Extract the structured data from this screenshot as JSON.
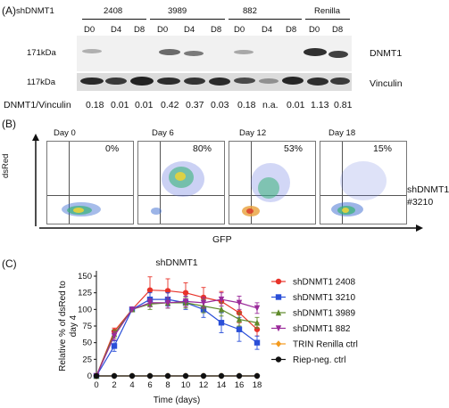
{
  "panel_a": {
    "letter": "(A)",
    "construct": "shDNMT1",
    "groups": [
      {
        "name": "2408",
        "lanes": [
          "D0",
          "D4",
          "D8"
        ]
      },
      {
        "name": "3989",
        "lanes": [
          "D0",
          "D4",
          "D8"
        ]
      },
      {
        "name": "882",
        "lanes": [
          "D0",
          "D4",
          "D8"
        ]
      },
      {
        "name": "Renilla",
        "lanes": [
          "D0",
          "D8"
        ]
      }
    ],
    "mw_top": "171kDa",
    "mw_bottom": "117kDa",
    "label_top": "DNMT1",
    "label_bottom": "Vinculin",
    "ratio_label": "DNMT1/Vinculin",
    "ratios": [
      "0.18",
      "0.01",
      "0.01",
      "0.42",
      "0.37",
      "0.03",
      "0.18",
      "n.a.",
      "0.01",
      "1.13",
      "0.81"
    ]
  },
  "panel_b": {
    "letter": "(B)",
    "days": [
      "Day 0",
      "Day 6",
      "Day 12",
      "Day 18"
    ],
    "percents": [
      "0%",
      "80%",
      "53%",
      "15%"
    ],
    "y_label": "dsRed",
    "x_label": "GFP",
    "construct": "shDNMT1",
    "construct_id": "#3210"
  },
  "panel_c": {
    "letter": "(C)",
    "chart_data": {
      "type": "line",
      "title": "shDNMT1",
      "xlabel": "Time (days)",
      "ylabel": "Relative % of dsRed to day 4",
      "ylabel_lines": [
        "Relative % of dsRed to",
        "day 4"
      ],
      "xlim": [
        0,
        18
      ],
      "ylim": [
        0,
        150
      ],
      "xticks": [
        0,
        2,
        4,
        6,
        8,
        10,
        12,
        14,
        16,
        18
      ],
      "yticks": [
        0,
        25,
        50,
        75,
        100,
        125,
        150
      ],
      "x": [
        0,
        2,
        4,
        6,
        8,
        10,
        12,
        14,
        16,
        18
      ],
      "legend_position": "right",
      "series": [
        {
          "name": "shDNMT1 2408",
          "color": "#e8332a",
          "marker": "circle",
          "values": [
            0,
            67,
            100,
            129,
            128,
            125,
            118,
            112,
            95,
            70
          ],
          "errors": [
            0,
            5,
            0,
            20,
            18,
            15,
            15,
            15,
            15,
            10
          ]
        },
        {
          "name": "shDNMT1 3210",
          "color": "#2a4fd8",
          "marker": "square",
          "values": [
            0,
            45,
            100,
            115,
            115,
            110,
            100,
            80,
            70,
            50
          ],
          "errors": [
            0,
            8,
            0,
            10,
            10,
            10,
            12,
            15,
            18,
            10
          ]
        },
        {
          "name": "shDNMT1 3989",
          "color": "#5f8a2a",
          "marker": "triangle-up",
          "values": [
            0,
            63,
            100,
            108,
            110,
            110,
            105,
            100,
            85,
            80
          ],
          "errors": [
            0,
            6,
            0,
            8,
            8,
            8,
            10,
            10,
            10,
            8
          ]
        },
        {
          "name": "shDNMT1 882",
          "color": "#9a2a9a",
          "marker": "triangle-down",
          "values": [
            0,
            60,
            100,
            110,
            110,
            112,
            110,
            115,
            110,
            102
          ],
          "errors": [
            0,
            6,
            0,
            6,
            8,
            8,
            8,
            10,
            10,
            8
          ]
        },
        {
          "name": "TRIN Renilla ctrl",
          "color": "#f39a1e",
          "marker": "diamond",
          "values": [
            0,
            0,
            0,
            0,
            0,
            0,
            0,
            0,
            0,
            0
          ],
          "errors": [
            0,
            0,
            0,
            0,
            0,
            0,
            0,
            0,
            0,
            0
          ]
        },
        {
          "name": "Riep-neg. ctrl",
          "color": "#111111",
          "marker": "circle",
          "values": [
            0,
            0,
            0,
            0,
            0,
            0,
            0,
            0,
            0,
            0
          ],
          "errors": [
            0,
            0,
            0,
            0,
            0,
            0,
            0,
            0,
            0,
            0
          ]
        }
      ]
    }
  }
}
